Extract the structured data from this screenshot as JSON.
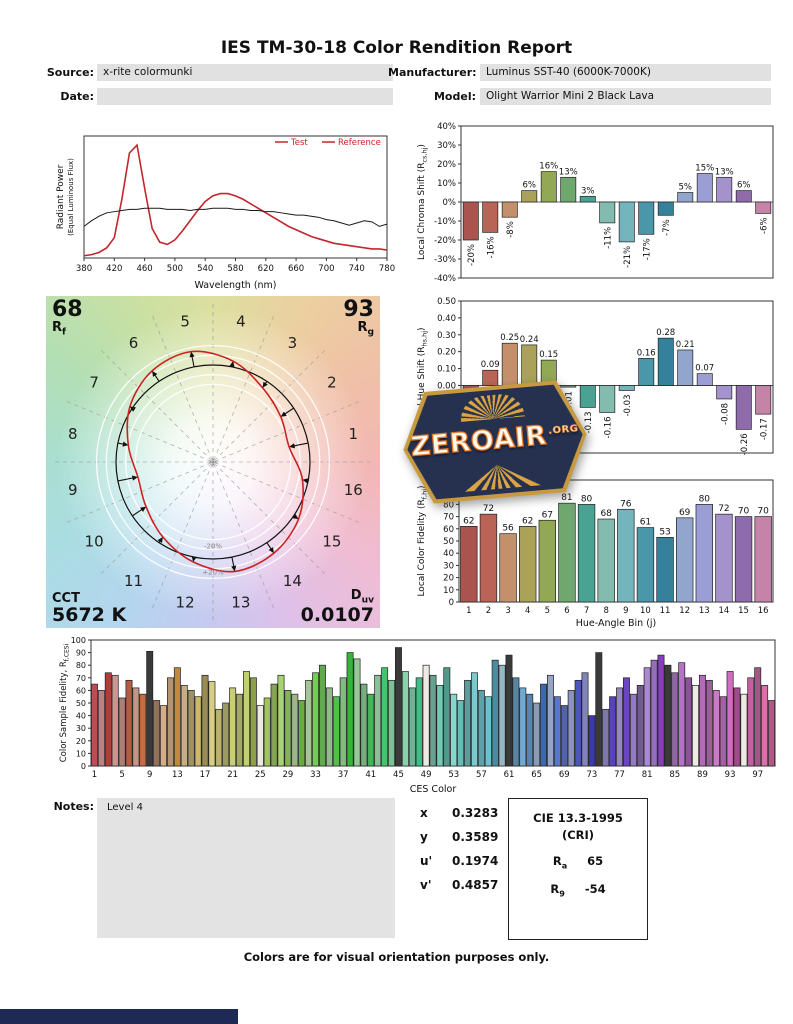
{
  "title": "IES TM-30-18 Color Rendition Report",
  "header": {
    "source_label": "Source:",
    "source_value": "x-rite colormunki",
    "manufacturer_label": "Manufacturer:",
    "manufacturer_value": "Luminus SST-40 (6000K-7000K)",
    "date_label": "Date:",
    "date_value": "",
    "model_label": "Model:",
    "model_value": "Olight Warrior Mini 2 Black Lava"
  },
  "cvg": {
    "rf_value": "68",
    "rf_main": "R",
    "rf_sub": "f",
    "rg_value": "93",
    "rg_main": "R",
    "rg_sub": "g",
    "cct_label": "CCT",
    "cct_value": "5672 K",
    "duv_main": "D",
    "duv_sub": "uv",
    "duv_value": "0.0107",
    "bin_numbers": [
      1,
      2,
      3,
      4,
      5,
      6,
      7,
      8,
      9,
      10,
      11,
      12,
      13,
      14,
      15,
      16
    ],
    "minus_label": "-20%",
    "plus_label": "+20%"
  },
  "watermark": {
    "text": "ZEROAIR",
    "suffix": ".ORG"
  },
  "notes": {
    "label": "Notes:",
    "content": "Level 4"
  },
  "chromaticity": {
    "rows": [
      {
        "label": "x",
        "value": "0.3283"
      },
      {
        "label": "y",
        "value": "0.3589"
      },
      {
        "label": "u'",
        "value": "0.1974"
      },
      {
        "label": "v'",
        "value": "0.4857"
      }
    ]
  },
  "cie_box": {
    "line1": "CIE 13.3-1995",
    "line2": "(CRI)",
    "ra_main": "R",
    "ra_sub": "a",
    "ra_value": "65",
    "r9_main": "R",
    "r9_sub": "9",
    "r9_value": "-54"
  },
  "footer": "Colors are for visual orientation purposes only.",
  "colors": {
    "bin_palette": [
      "#a9544e",
      "#b96457",
      "#c4906c",
      "#a9a258",
      "#92a854",
      "#6fa76f",
      "#4aa392",
      "#83bcae",
      "#74b5bd",
      "#4a97a9",
      "#35809b",
      "#92a5cc",
      "#9a9ed5",
      "#a492cc",
      "#8e6cab",
      "#c683a8"
    ],
    "test_line": "#c1272d",
    "reference_line": "#1a1a1a",
    "legend_text": "#cc2222",
    "value_box_bg": "#e1e1e1",
    "navy_bar": "#1e2a55",
    "watermark_navy": "#26304f",
    "watermark_gold": "#d9a441",
    "watermark_orange": "#e87722"
  },
  "chart_data": [
    {
      "id": "spd",
      "type": "line",
      "xlabel": "Wavelength (nm)",
      "ylabel_lines": [
        "Radiant Power",
        "(Equal Luminous Flux)"
      ],
      "xlim": [
        380,
        780
      ],
      "ylim": [
        0,
        108
      ],
      "xtick_vals": [
        380,
        420,
        460,
        500,
        540,
        580,
        620,
        660,
        700,
        740,
        780
      ],
      "legend": [
        {
          "label": "Test",
          "color": "#cc2222"
        },
        {
          "label": "Reference",
          "color": "#cc2222"
        }
      ],
      "series": [
        {
          "name": "Test",
          "color": "#c1272d",
          "width": 1.6,
          "x": [
            380,
            390,
            400,
            410,
            420,
            430,
            440,
            450,
            460,
            470,
            480,
            490,
            500,
            510,
            520,
            530,
            540,
            550,
            560,
            570,
            580,
            590,
            600,
            610,
            620,
            630,
            640,
            650,
            660,
            670,
            680,
            690,
            700,
            710,
            720,
            730,
            740,
            750,
            760,
            770,
            780
          ],
          "values": [
            2,
            3,
            5,
            9,
            18,
            52,
            93,
            100,
            62,
            26,
            14,
            12,
            16,
            24,
            33,
            42,
            50,
            55,
            57,
            57,
            55,
            52,
            48,
            44,
            40,
            36,
            32,
            28,
            25,
            22,
            19,
            17,
            15,
            13,
            12,
            11,
            10,
            9,
            8,
            8,
            7
          ]
        },
        {
          "name": "Reference",
          "color": "#1a1a1a",
          "width": 1.0,
          "x": [
            380,
            390,
            400,
            410,
            420,
            430,
            440,
            450,
            460,
            470,
            480,
            490,
            500,
            510,
            520,
            530,
            540,
            550,
            560,
            570,
            580,
            590,
            600,
            610,
            620,
            630,
            640,
            650,
            660,
            670,
            680,
            690,
            700,
            710,
            720,
            730,
            740,
            750,
            760,
            770,
            780
          ],
          "values": [
            28,
            33,
            37,
            40,
            41,
            42,
            43,
            43,
            44,
            44,
            44,
            43,
            43,
            43,
            42,
            43,
            43,
            44,
            44,
            44,
            43,
            43,
            42,
            42,
            41,
            41,
            40,
            39,
            38,
            38,
            37,
            36,
            34,
            33,
            31,
            29,
            31,
            33,
            32,
            28,
            30
          ]
        }
      ]
    },
    {
      "id": "chroma",
      "type": "bar",
      "ylabel_parts": [
        {
          "t": "Local Chroma Shift (R"
        },
        {
          "t": "cs,hj",
          "sub": true
        },
        {
          "t": ")"
        }
      ],
      "ylim": [
        -40,
        40
      ],
      "ytick_vals": [
        40,
        30,
        20,
        10,
        0,
        -10,
        -20,
        -30,
        -40
      ],
      "ytick_labels": [
        "40%",
        "30%",
        "20%",
        "10%",
        "0%",
        "-10%",
        "-20%",
        "-30%",
        "-40%"
      ],
      "values": [
        -20,
        -16,
        -8,
        6,
        16,
        13,
        3,
        -11,
        -21,
        -17,
        -7,
        5,
        15,
        13,
        6,
        -6
      ],
      "labels": [
        "-20%",
        "-16%",
        "-8%",
        "6%",
        "16%",
        "13%",
        "3%",
        "-11%",
        "-21%",
        "-17%",
        "-7%",
        "5%",
        "15%",
        "13%",
        "6%",
        "-6%"
      ]
    },
    {
      "id": "hue",
      "type": "bar",
      "ylabel_parts": [
        {
          "t": "Local Hue Shift (R"
        },
        {
          "t": "hs,hj",
          "sub": true
        },
        {
          "t": ")"
        }
      ],
      "ylim": [
        -0.4,
        0.5
      ],
      "ytick_vals": [
        0.5,
        0.4,
        0.3,
        0.2,
        0.1,
        0,
        -0.1,
        -0.2,
        -0.3,
        -0.4
      ],
      "ytick_labels": [
        "0.50",
        "0.40",
        "0.30",
        "0.20",
        "0.10",
        "0.00",
        "-0.10",
        "-0.20",
        "-0.30",
        "-0.40"
      ],
      "values": [
        -0.07,
        0.09,
        0.25,
        0.24,
        0.15,
        -0.01,
        -0.13,
        -0.16,
        -0.03,
        0.16,
        0.28,
        0.21,
        0.07,
        -0.08,
        -0.26,
        -0.17
      ],
      "labels": [
        "-0.07",
        "0.09",
        "0.25",
        "0.24",
        "0.15",
        "-0.01",
        "-0.13",
        "-0.16",
        "-0.03",
        "0.16",
        "0.28",
        "0.21",
        "0.07",
        "-0.08",
        "-0.26",
        "-0.17"
      ]
    },
    {
      "id": "fidelity",
      "type": "bar",
      "xlabel": "Hue-Angle Bin (j)",
      "ylabel_parts": [
        {
          "t": "Local Color Fidelity (R"
        },
        {
          "t": "f,hj",
          "sub": true
        },
        {
          "t": ")"
        }
      ],
      "ylim": [
        0,
        100
      ],
      "ytick_vals": [
        100,
        90,
        80,
        70,
        60,
        50,
        40,
        30,
        20,
        10,
        0
      ],
      "ytick_labels": [
        "100",
        "90",
        "80",
        "70",
        "60",
        "50",
        "40",
        "30",
        "20",
        "10",
        "0"
      ],
      "xtick_vals": [
        1,
        2,
        3,
        4,
        5,
        6,
        7,
        8,
        9,
        10,
        11,
        12,
        13,
        14,
        15,
        16
      ],
      "xtick_labels": [
        "1",
        "2",
        "3",
        "4",
        "5",
        "6",
        "7",
        "8",
        "9",
        "10",
        "11",
        "12",
        "13",
        "14",
        "15",
        "16"
      ],
      "values": [
        62,
        72,
        56,
        62,
        67,
        81,
        80,
        68,
        76,
        61,
        53,
        69,
        80,
        72,
        70,
        70
      ],
      "labels": [
        "62",
        "72",
        "56",
        "62",
        "67",
        "81",
        "80",
        "68",
        "76",
        "61",
        "53",
        "69",
        "80",
        "72",
        "70",
        "70"
      ]
    },
    {
      "id": "ces",
      "type": "bar",
      "xlabel": "CES Color",
      "ylabel_parts": [
        {
          "t": "Color Sample Fidelity, R"
        },
        {
          "t": "f,CESi",
          "sub": true
        }
      ],
      "ylim": [
        0,
        100
      ],
      "ytick_vals": [
        100,
        90,
        80,
        70,
        60,
        50,
        40,
        30,
        20,
        10,
        0
      ],
      "ytick_labels": [
        "100",
        "90",
        "80",
        "70",
        "60",
        "50",
        "40",
        "30",
        "20",
        "10",
        "0"
      ],
      "xtick_vals": [
        1,
        5,
        9,
        13,
        17,
        21,
        25,
        29,
        33,
        37,
        41,
        45,
        49,
        53,
        57,
        61,
        65,
        69,
        73,
        77,
        81,
        85,
        89,
        93,
        97
      ],
      "xtick_labels": [
        "1",
        "5",
        "9",
        "13",
        "17",
        "21",
        "25",
        "29",
        "33",
        "37",
        "41",
        "45",
        "49",
        "53",
        "57",
        "61",
        "65",
        "69",
        "73",
        "77",
        "81",
        "85",
        "89",
        "93",
        "97"
      ],
      "values": [
        65,
        60,
        74,
        72,
        54,
        68,
        62,
        57,
        91,
        52,
        48,
        70,
        78,
        64,
        60,
        55,
        72,
        67,
        45,
        50,
        62,
        57,
        75,
        70,
        48,
        54,
        65,
        72,
        60,
        57,
        52,
        68,
        74,
        80,
        62,
        55,
        70,
        90,
        85,
        65,
        57,
        72,
        78,
        68,
        94,
        75,
        62,
        70,
        80,
        72,
        64,
        78,
        57,
        52,
        68,
        74,
        60,
        55,
        84,
        80,
        88,
        70,
        62,
        57,
        50,
        65,
        72,
        55,
        48,
        60,
        68,
        74,
        40,
        90,
        45,
        55,
        62,
        70,
        57,
        64,
        78,
        84,
        88,
        80,
        74,
        82,
        70,
        64,
        72,
        68,
        60,
        55,
        75,
        62,
        57,
        70,
        78,
        64,
        52
      ]
    }
  ]
}
